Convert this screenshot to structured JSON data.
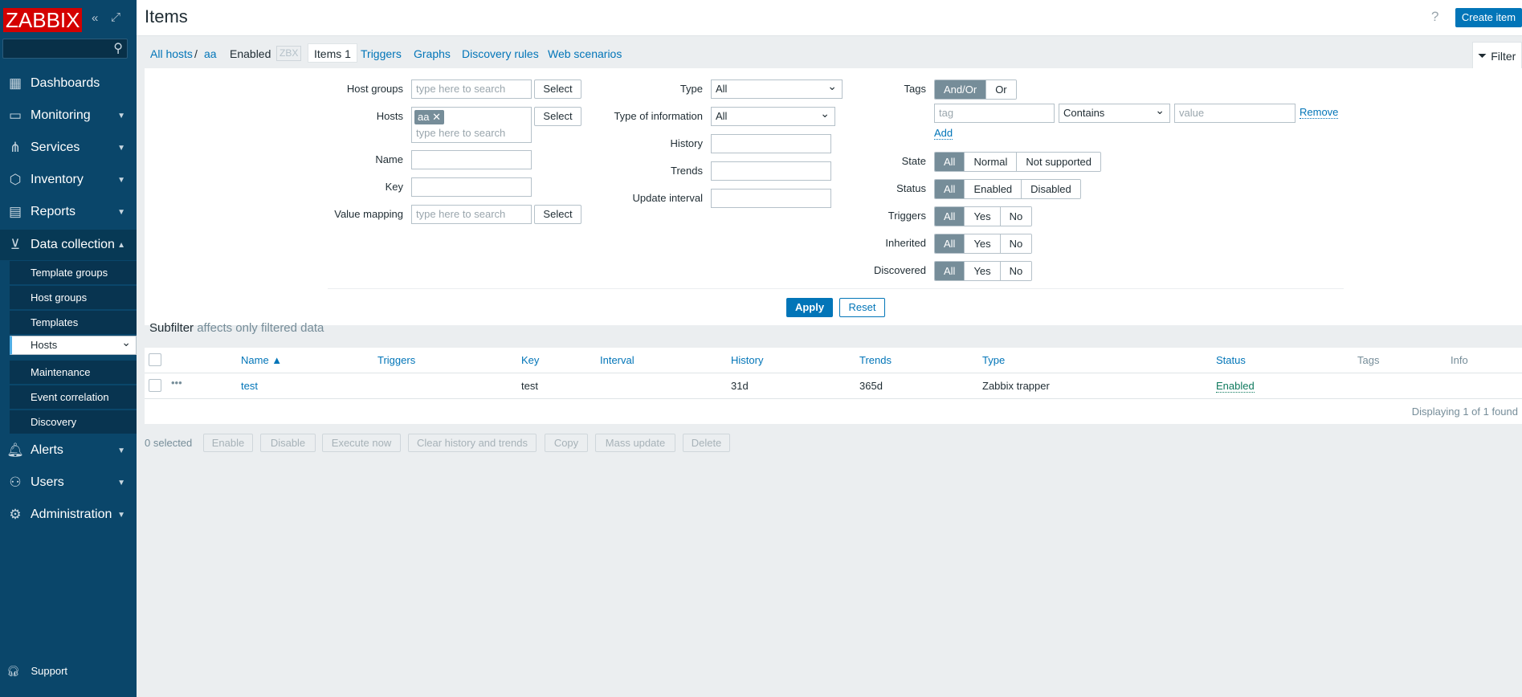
{
  "app": {
    "logo": "ZABBIX",
    "search_placeholder": ""
  },
  "sidebar": {
    "items": [
      {
        "label": "Dashboards",
        "icon": "dashboard-icon",
        "expandable": false
      },
      {
        "label": "Monitoring",
        "icon": "monitoring-icon",
        "expandable": true
      },
      {
        "label": "Services",
        "icon": "services-icon",
        "expandable": true
      },
      {
        "label": "Inventory",
        "icon": "inventory-icon",
        "expandable": true
      },
      {
        "label": "Reports",
        "icon": "reports-icon",
        "expandable": true
      },
      {
        "label": "Data collection",
        "icon": "data-collection-icon",
        "expandable": true
      },
      {
        "label": "Alerts",
        "icon": "alerts-icon",
        "expandable": true
      },
      {
        "label": "Users",
        "icon": "users-icon",
        "expandable": true
      },
      {
        "label": "Administration",
        "icon": "administration-icon",
        "expandable": true
      }
    ],
    "submenu": [
      "Template groups",
      "Host groups",
      "Templates",
      "Hosts",
      "Maintenance",
      "Event correlation",
      "Discovery"
    ],
    "submenu_selected": "Hosts",
    "support": "Support"
  },
  "header": {
    "title": "Items",
    "help": "?",
    "create_button": "Create item"
  },
  "nav": {
    "all_hosts": "All hosts",
    "separator": "/",
    "host": "aa",
    "status": "Enabled",
    "zbx": "ZBX",
    "tabs": [
      "Items 1",
      "Triggers",
      "Graphs",
      "Discovery rules",
      "Web scenarios"
    ],
    "filter": "Filter"
  },
  "filter": {
    "host_groups": {
      "label": "Host groups",
      "placeholder": "type here to search",
      "button": "Select"
    },
    "hosts": {
      "label": "Hosts",
      "chip": "aa",
      "placeholder": "type here to search",
      "button": "Select"
    },
    "name": {
      "label": "Name",
      "value": ""
    },
    "key": {
      "label": "Key",
      "value": ""
    },
    "value_mapping": {
      "label": "Value mapping",
      "placeholder": "type here to search",
      "button": "Select"
    },
    "type": {
      "label": "Type",
      "value": "All"
    },
    "type_of_information": {
      "label": "Type of information",
      "value": "All"
    },
    "history": {
      "label": "History",
      "value": ""
    },
    "trends": {
      "label": "Trends",
      "value": ""
    },
    "update_interval": {
      "label": "Update interval",
      "value": ""
    },
    "tags": {
      "label": "Tags",
      "options": [
        "And/Or",
        "Or"
      ],
      "selected": "And/Or",
      "tag_placeholder": "tag",
      "operator": "Contains",
      "value_placeholder": "value",
      "remove": "Remove",
      "add": "Add"
    },
    "state": {
      "label": "State",
      "options": [
        "All",
        "Normal",
        "Not supported"
      ],
      "selected": "All"
    },
    "status": {
      "label": "Status",
      "options": [
        "All",
        "Enabled",
        "Disabled"
      ],
      "selected": "All"
    },
    "triggers": {
      "label": "Triggers",
      "options": [
        "All",
        "Yes",
        "No"
      ],
      "selected": "All"
    },
    "inherited": {
      "label": "Inherited",
      "options": [
        "All",
        "Yes",
        "No"
      ],
      "selected": "All"
    },
    "discovered": {
      "label": "Discovered",
      "options": [
        "All",
        "Yes",
        "No"
      ],
      "selected": "All"
    },
    "apply": "Apply",
    "reset": "Reset"
  },
  "subfilter": {
    "title": "Subfilter",
    "note": "affects only filtered data"
  },
  "table": {
    "columns": [
      "Name ▲",
      "Triggers",
      "Key",
      "Interval",
      "History",
      "Trends",
      "Type",
      "Status",
      "Tags",
      "Info"
    ],
    "rows": [
      {
        "name": "test",
        "triggers": "",
        "key": "test",
        "interval": "",
        "history": "31d",
        "trends": "365d",
        "type": "Zabbix trapper",
        "status": "Enabled",
        "tags": "",
        "info": ""
      }
    ],
    "footer": "Displaying 1 of 1 found"
  },
  "actions": {
    "selected": "0 selected",
    "buttons": [
      "Enable",
      "Disable",
      "Execute now",
      "Clear history and trends",
      "Copy",
      "Mass update",
      "Delete"
    ]
  },
  "colors": {
    "sidebar": "#0a466a",
    "accent": "#0275b8",
    "segment_active": "#768d99",
    "logo": "#d40000",
    "background": "#ebeef0"
  }
}
